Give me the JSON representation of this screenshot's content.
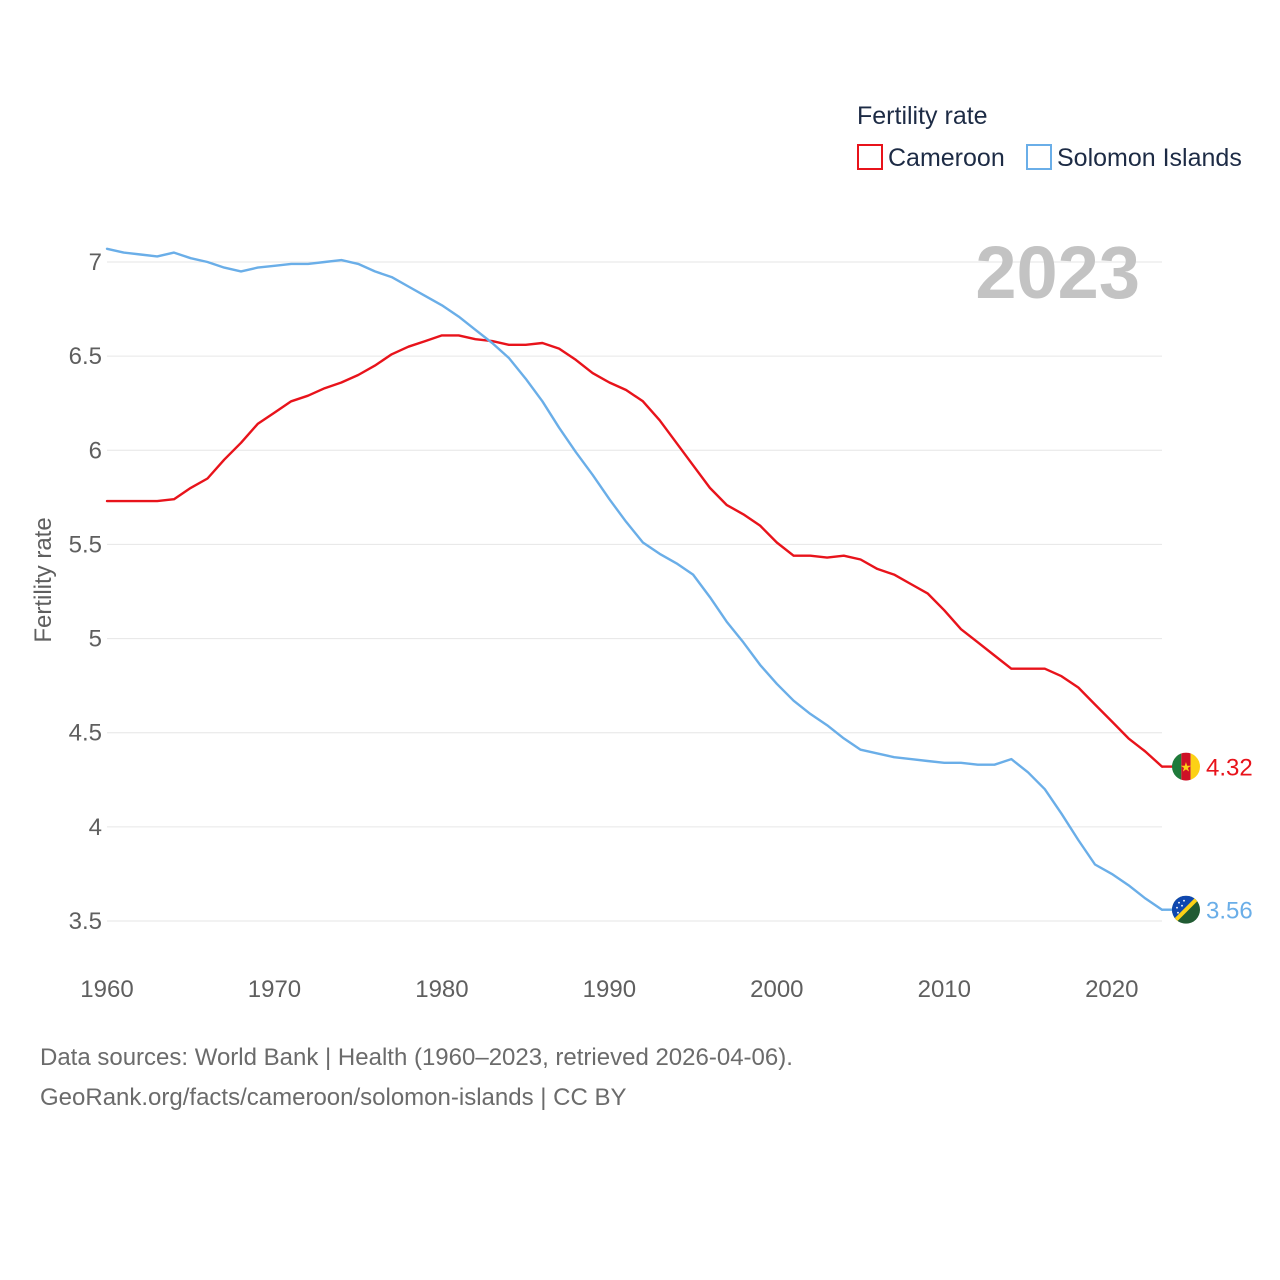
{
  "chart_data": {
    "type": "line",
    "legend_title": "Fertility rate",
    "ylabel": "Fertility rate",
    "xlabel": "",
    "current_year": "2023",
    "xlim": [
      1960,
      2023
    ],
    "ylim": [
      3.5,
      7
    ],
    "x_ticks": [
      1960,
      1970,
      1980,
      1990,
      2000,
      2010,
      2020
    ],
    "y_ticks": [
      3.5,
      4,
      4.5,
      5,
      5.5,
      6,
      6.5,
      7
    ],
    "x": [
      1960,
      1961,
      1962,
      1963,
      1964,
      1965,
      1966,
      1967,
      1968,
      1969,
      1970,
      1971,
      1972,
      1973,
      1974,
      1975,
      1976,
      1977,
      1978,
      1979,
      1980,
      1981,
      1982,
      1983,
      1984,
      1985,
      1986,
      1987,
      1988,
      1989,
      1990,
      1991,
      1992,
      1993,
      1994,
      1995,
      1996,
      1997,
      1998,
      1999,
      2000,
      2001,
      2002,
      2003,
      2004,
      2005,
      2006,
      2007,
      2008,
      2009,
      2010,
      2011,
      2012,
      2013,
      2014,
      2015,
      2016,
      2017,
      2018,
      2019,
      2020,
      2021,
      2022,
      2023
    ],
    "series": [
      {
        "name": "Cameroon",
        "color": "#e8131b",
        "end_label": "4.32",
        "flag": "cameroon-flag",
        "values": [
          5.73,
          5.73,
          5.73,
          5.73,
          5.74,
          5.8,
          5.85,
          5.95,
          6.04,
          6.14,
          6.2,
          6.26,
          6.29,
          6.33,
          6.36,
          6.4,
          6.45,
          6.51,
          6.55,
          6.58,
          6.61,
          6.61,
          6.59,
          6.58,
          6.56,
          6.56,
          6.57,
          6.54,
          6.48,
          6.41,
          6.36,
          6.32,
          6.26,
          6.16,
          6.04,
          5.92,
          5.8,
          5.71,
          5.66,
          5.6,
          5.51,
          5.44,
          5.44,
          5.43,
          5.44,
          5.42,
          5.37,
          5.34,
          5.29,
          5.24,
          5.15,
          5.05,
          4.98,
          4.91,
          4.84,
          4.84,
          4.84,
          4.8,
          4.74,
          4.65,
          4.56,
          4.47,
          4.4,
          4.32
        ]
      },
      {
        "name": "Solomon Islands",
        "color": "#6aaee8",
        "end_label": "3.56",
        "flag": "solomon-islands-flag",
        "values": [
          7.07,
          7.05,
          7.04,
          7.03,
          7.05,
          7.02,
          7.0,
          6.97,
          6.95,
          6.97,
          6.98,
          6.99,
          6.99,
          7.0,
          7.01,
          6.99,
          6.95,
          6.92,
          6.87,
          6.82,
          6.77,
          6.71,
          6.64,
          6.57,
          6.49,
          6.38,
          6.26,
          6.12,
          5.99,
          5.87,
          5.74,
          5.62,
          5.51,
          5.45,
          5.4,
          5.34,
          5.22,
          5.09,
          4.98,
          4.86,
          4.76,
          4.67,
          4.6,
          4.54,
          4.47,
          4.41,
          4.39,
          4.37,
          4.36,
          4.35,
          4.34,
          4.34,
          4.33,
          4.33,
          4.36,
          4.29,
          4.2,
          4.07,
          3.93,
          3.8,
          3.75,
          3.69,
          3.62,
          3.56
        ]
      }
    ]
  },
  "footer": {
    "sources": "Data sources: World Bank | Health (1960–2023, retrieved 2026-04-06).",
    "link": "GeoRank.org/facts/cameroon/solomon-islands | CC BY"
  }
}
